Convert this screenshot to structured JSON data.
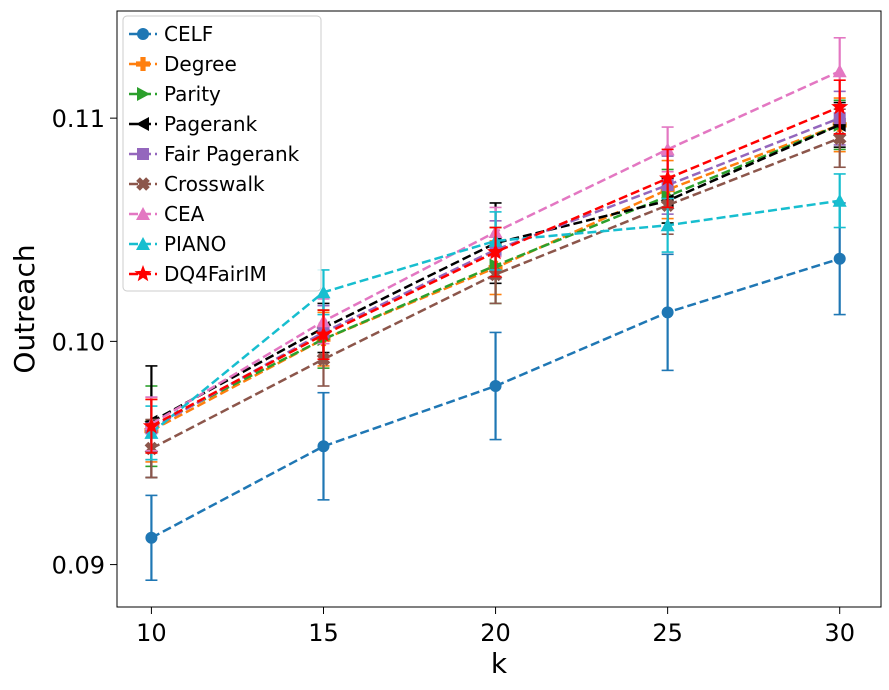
{
  "chart_data": {
    "type": "line",
    "xlabel": "k",
    "ylabel": "Outreach",
    "x": [
      10,
      15,
      20,
      25,
      30
    ],
    "xlim": [
      9,
      31.2
    ],
    "ylim": [
      0.0881,
      0.1148
    ],
    "xticks": [
      "10",
      "15",
      "20",
      "25",
      "30"
    ],
    "yticks": [
      {
        "value": 0.09,
        "label": "0.09"
      },
      {
        "value": 0.1,
        "label": "0.10"
      },
      {
        "value": 0.11,
        "label": "0.11"
      }
    ],
    "grid": false,
    "legend_position": "top-left",
    "series": [
      {
        "name": "CELF",
        "color": "#1f77b4",
        "marker": "circle",
        "values": [
          0.0912,
          0.0953,
          0.098,
          0.1013,
          0.1037
        ],
        "errors": [
          0.0019,
          0.0024,
          0.0024,
          0.0026,
          0.0025
        ]
      },
      {
        "name": "Degree",
        "color": "#ff7f0e",
        "marker": "plus",
        "values": [
          0.096,
          0.1001,
          0.1033,
          0.1068,
          0.1097
        ],
        "errors": [
          0.0014,
          0.0012,
          0.0012,
          0.0013,
          0.0012
        ]
      },
      {
        "name": "Parity",
        "color": "#2ca02c",
        "marker": "triangle-right",
        "values": [
          0.0962,
          0.1001,
          0.1034,
          0.1065,
          0.1097
        ],
        "errors": [
          0.0018,
          0.0013,
          0.0017,
          0.0012,
          0.0011
        ]
      },
      {
        "name": "Pagerank",
        "color": "#000000",
        "marker": "triangle-left",
        "values": [
          0.0964,
          0.1006,
          0.1044,
          0.1063,
          0.1097
        ],
        "errors": [
          0.0025,
          0.0011,
          0.0018,
          0.001,
          0.001
        ]
      },
      {
        "name": "Fair Pagerank",
        "color": "#9467bd",
        "marker": "square",
        "values": [
          0.0961,
          0.1004,
          0.1041,
          0.107,
          0.11
        ],
        "errors": [
          0.0014,
          0.0012,
          0.0013,
          0.0013,
          0.0012
        ]
      },
      {
        "name": "Crosswalk",
        "color": "#8c564b",
        "marker": "x-filled",
        "values": [
          0.0952,
          0.0992,
          0.103,
          0.1061,
          0.1091
        ],
        "errors": [
          0.0013,
          0.0012,
          0.0013,
          0.0013,
          0.0013
        ]
      },
      {
        "name": "CEA",
        "color": "#e377c2",
        "marker": "triangle-up",
        "values": [
          0.0963,
          0.1009,
          0.1049,
          0.1086,
          0.1121
        ],
        "errors": [
          0.0012,
          0.001,
          0.0011,
          0.001,
          0.0015
        ]
      },
      {
        "name": "PIANO",
        "color": "#17becf",
        "marker": "triangle-up",
        "values": [
          0.0959,
          0.1022,
          0.1045,
          0.1052,
          0.1063
        ],
        "errors": [
          0.0012,
          0.001,
          0.0013,
          0.0012,
          0.0012
        ]
      },
      {
        "name": "DQ4FairIM",
        "color": "#ff0000",
        "marker": "star",
        "values": [
          0.0962,
          0.1003,
          0.104,
          0.1073,
          0.1105
        ],
        "errors": [
          0.0012,
          0.0011,
          0.0011,
          0.0013,
          0.0012
        ]
      }
    ]
  }
}
